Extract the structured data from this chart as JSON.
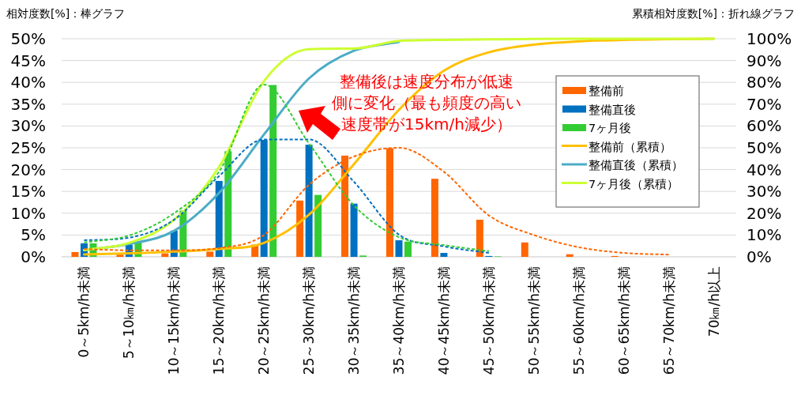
{
  "chart_data": {
    "type": "bar",
    "ylabel": "相対度数[%]：棒グラフ",
    "y2label": "累積相対度数[%]：折れ線グラフ",
    "categories": [
      "0～5km/h未満",
      "5～10㎞/h未満",
      "10～15km/h未満",
      "15～20km/h未満",
      "20～25km/h未満",
      "25～30km/h未満",
      "30～35km/h未満",
      "35～40km/h未満",
      "40～45km/h未満",
      "45～50km/h未満",
      "50～55km/h未満",
      "55～60km/h未満",
      "60～65km/h未満",
      "65～70km/h未満",
      "70㎞/h以上"
    ],
    "series": [
      {
        "name": "整備前",
        "color": "#ff6600",
        "values": [
          1.1,
          0.5,
          0.8,
          1.2,
          2.8,
          12.9,
          23.2,
          24.9,
          17.9,
          8.5,
          3.3,
          0.6,
          0.2,
          0,
          0
        ]
      },
      {
        "name": "整備直後",
        "color": "#0070c0",
        "values": [
          3.1,
          2.8,
          6.0,
          17.4,
          26.8,
          25.7,
          12.2,
          3.8,
          0.9,
          0.2,
          0,
          0,
          0,
          0,
          0
        ]
      },
      {
        "name": "7ヶ月後",
        "color": "#33cc33",
        "values": [
          3.1,
          3.3,
          10.6,
          24.2,
          39.4,
          14.2,
          0.3,
          3.5,
          0,
          0.1,
          0,
          0,
          0,
          0,
          0
        ]
      },
      {
        "name": "整備前（累積）",
        "type": "line",
        "axis": "y2",
        "color": "#ffc000",
        "values": [
          1.1,
          1.6,
          2.4,
          3.6,
          6.4,
          19.3,
          42.5,
          67.4,
          85.3,
          93.8,
          97.3,
          98.8,
          99.5,
          99.8,
          100
        ]
      },
      {
        "name": "整備直後（累積）",
        "type": "line",
        "axis": "y2",
        "color": "#4bacc6",
        "values": [
          3.1,
          5.9,
          11.9,
          29.3,
          56.1,
          81.8,
          94.5,
          98.5,
          null,
          null,
          null,
          null,
          null,
          null,
          null
        ]
      },
      {
        "name": "7ヶ月後（累積）",
        "type": "line",
        "axis": "y2",
        "color": "#ccff33",
        "values": [
          3.1,
          6.4,
          17.0,
          41.2,
          80.6,
          95.2,
          95.5,
          99.0,
          99.5,
          99.7,
          99.9,
          100,
          100,
          100,
          100
        ]
      },
      {
        "type": "line",
        "line_style": "dashed",
        "color": "#ff6600",
        "values": [
          1.8,
          1.5,
          1.5,
          2.0,
          5.0,
          16.5,
          23.0,
          25.0,
          19.5,
          9.5,
          5.0,
          2.2,
          0.9,
          0.5,
          null
        ]
      },
      {
        "type": "line",
        "line_style": "dashed",
        "color": "#0070c0",
        "values": [
          3.8,
          4.4,
          8.5,
          18.5,
          26.9,
          26.9,
          17.2,
          5.1,
          2.4,
          0.9,
          null,
          null,
          null,
          null,
          null
        ]
      },
      {
        "type": "line",
        "line_style": "dashed",
        "color": "#33cc33",
        "values": [
          3.3,
          4.9,
          10.0,
          19.5,
          39.5,
          26.0,
          11.8,
          4.5,
          2.7,
          1.3,
          null,
          null,
          null,
          null,
          null
        ]
      }
    ],
    "ylim": [
      0,
      50
    ],
    "yticks": [
      {
        "value": 0,
        "label": "0%"
      },
      {
        "value": 5,
        "label": "5%"
      },
      {
        "value": 10,
        "label": "10%"
      },
      {
        "value": 15,
        "label": "15%"
      },
      {
        "value": 20,
        "label": "20%"
      },
      {
        "value": 25,
        "label": "25%"
      },
      {
        "value": 30,
        "label": "30%"
      },
      {
        "value": 35,
        "label": "35%"
      },
      {
        "value": 40,
        "label": "40%"
      },
      {
        "value": 45,
        "label": "45%"
      },
      {
        "value": 50,
        "label": "50%"
      }
    ],
    "y2lim": [
      0,
      100
    ],
    "y2ticks": [
      {
        "value": 0,
        "label": "0%"
      },
      {
        "value": 10,
        "label": "10%"
      },
      {
        "value": 20,
        "label": "20%"
      },
      {
        "value": 30,
        "label": "30%"
      },
      {
        "value": 40,
        "label": "40%"
      },
      {
        "value": 50,
        "label": "50%"
      },
      {
        "value": 60,
        "label": "60%"
      },
      {
        "value": 70,
        "label": "70%"
      },
      {
        "value": 80,
        "label": "80%"
      },
      {
        "value": 90,
        "label": "90%"
      },
      {
        "value": 100,
        "label": "100%"
      }
    ],
    "grid": "y",
    "legend": "right",
    "annotations": [
      "整備後は速度分布が低速",
      "側に変化（最も頻度の高い",
      "速度帯が15km/h減少）"
    ]
  }
}
